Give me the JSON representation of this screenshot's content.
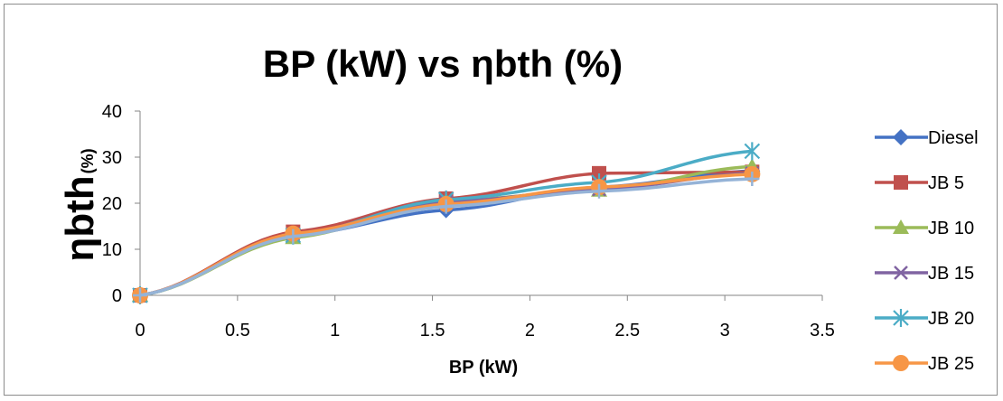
{
  "chart_data": {
    "type": "line",
    "title": "BP (kW) vs ηbth (%)",
    "xlabel": "BP (kW)",
    "ylabel_main": "ηbth",
    "ylabel_unit": "(%)",
    "xlim": [
      0,
      3.5
    ],
    "ylim": [
      0,
      40
    ],
    "x_ticks": [
      "0",
      "0.5",
      "1",
      "1.5",
      "2",
      "2.5",
      "3",
      "3.5"
    ],
    "y_ticks": [
      "0",
      "10",
      "20",
      "30",
      "40"
    ],
    "grid": false,
    "legend_position": "right",
    "x": [
      0,
      0.785,
      1.57,
      2.355,
      3.14
    ],
    "series": [
      {
        "name": "Diesel",
        "values": [
          0,
          13.0,
          18.5,
          23.5,
          27.0
        ],
        "color": "#4472C4",
        "marker": "diamond"
      },
      {
        "name": "JB 5",
        "values": [
          0,
          13.8,
          21.0,
          26.5,
          26.8
        ],
        "color": "#C0504D",
        "marker": "square"
      },
      {
        "name": "JB 10",
        "values": [
          0,
          12.5,
          20.5,
          22.8,
          28.0
        ],
        "color": "#9BBB59",
        "marker": "triangle"
      },
      {
        "name": "JB 15",
        "values": [
          0,
          13.2,
          20.3,
          23.0,
          26.5
        ],
        "color": "#8064A2",
        "marker": "x"
      },
      {
        "name": "JB 20",
        "values": [
          0,
          13.0,
          20.8,
          24.5,
          31.3
        ],
        "color": "#4BACC6",
        "marker": "star"
      },
      {
        "name": "JB 25",
        "values": [
          0,
          13.4,
          19.8,
          23.5,
          26.3
        ],
        "color": "#F79646",
        "marker": "circle"
      },
      {
        "name": "",
        "values": [
          0,
          12.8,
          19.3,
          22.6,
          25.3
        ],
        "color": "#95B3D7",
        "marker": "plus"
      }
    ]
  }
}
